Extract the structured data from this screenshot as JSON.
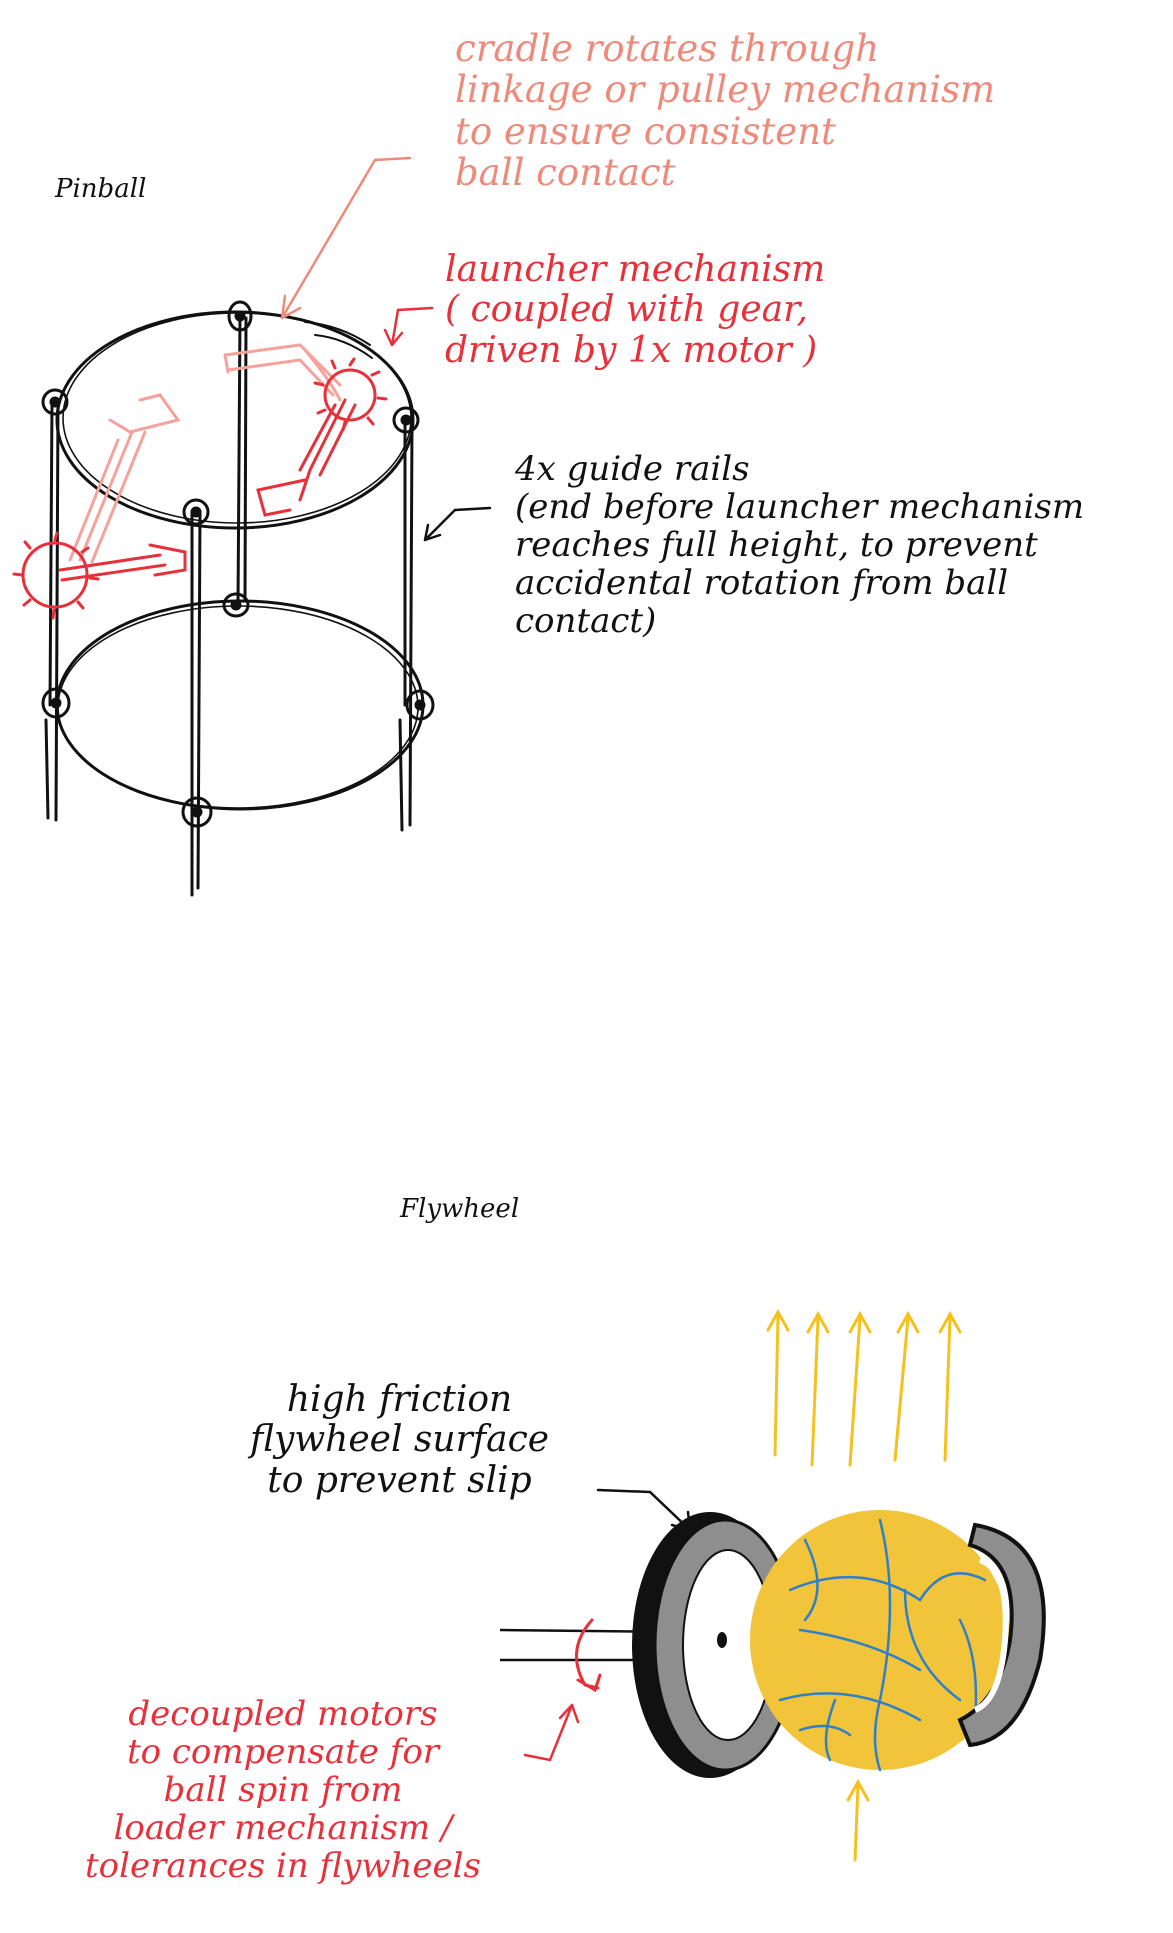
{
  "colors": {
    "ink": "#111111",
    "salmon": "#ee8a7a",
    "red": "#e8303a",
    "pink": "#f4a29a",
    "yellow": "#f2c43a",
    "arrow_yellow": "#f4c11f",
    "blue": "#2f80c8",
    "grey": "#8e8e8e"
  },
  "pinball": {
    "title": "Pinball",
    "notes": {
      "cradle": "cradle rotates through\nlinkage or pulley mechanism\nto ensure consistent\nball contact",
      "launcher": "launcher mechanism\n( coupled with gear,\ndriven by 1x motor )",
      "rails": "4x guide rails\n(end before launcher mechanism\nreaches full height, to prevent\naccidental rotation from ball\ncontact)"
    }
  },
  "flywheel": {
    "title": "Flywheel",
    "notes": {
      "surface": "high friction\nflywheel surface\nto prevent slip",
      "motors": "decoupled motors\nto compensate for\nball spin from\nloader mechanism /\ntolerances in flywheels"
    }
  }
}
